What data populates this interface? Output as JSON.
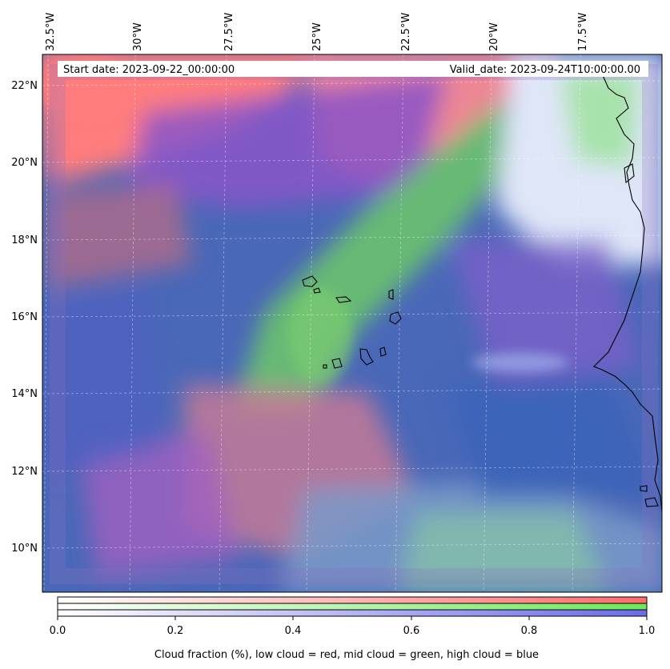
{
  "header": {
    "start_date": "Start date: 2023-09-22_00:00:00",
    "valid_date": "Valid_date: 2023-09-24T10:00:00.00"
  },
  "map": {
    "lon_labels": [
      "32.5°W",
      "30°W",
      "27.5°W",
      "25°W",
      "22.5°W",
      "20°W",
      "17.5°W"
    ],
    "lat_labels": [
      "22°N",
      "20°N",
      "18°N",
      "16°N",
      "14°N",
      "12°N",
      "10°N"
    ],
    "lon_range": [
      -32.5,
      -15.8
    ],
    "lat_range": [
      8.9,
      22.8
    ]
  },
  "colorbar": {
    "tick_labels": [
      "0.0",
      "0.2",
      "0.4",
      "0.6",
      "0.8",
      "1.0"
    ],
    "range": [
      0.0,
      1.0
    ],
    "layers": [
      {
        "name": "low cloud",
        "color": "#ff6b6b"
      },
      {
        "name": "mid cloud",
        "color": "#6bea5a"
      },
      {
        "name": "high cloud",
        "color": "#6b6bea"
      }
    ],
    "label": "Cloud fraction (%), low cloud = red, mid cloud = green, high cloud = blue"
  }
}
